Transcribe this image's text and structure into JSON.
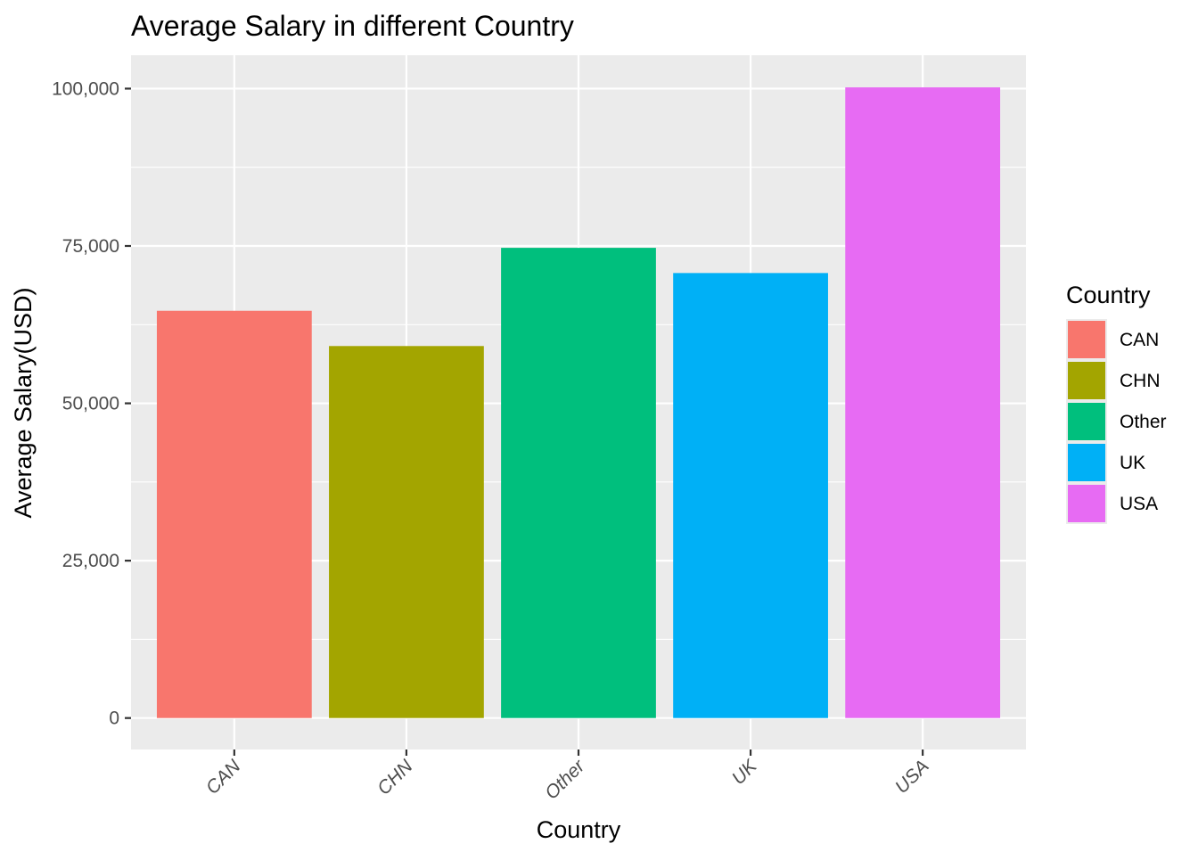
{
  "chart_data": {
    "type": "bar",
    "title": "Average Salary in different Country",
    "xlabel": "Country",
    "ylabel": "Average Salary(USD)",
    "categories": [
      "CAN",
      "CHN",
      "Other",
      "UK",
      "USA"
    ],
    "values": [
      64700,
      59100,
      74700,
      70700,
      100200
    ],
    "colors": [
      "#F8766D",
      "#A3A500",
      "#00BF7D",
      "#00B0F6",
      "#E76BF3"
    ],
    "ylim": [
      -5000,
      105300
    ],
    "yticks": [
      0,
      25000,
      50000,
      75000,
      100000
    ],
    "ytick_labels": [
      "0",
      "25,000",
      "50,000",
      "75,000",
      "100,000"
    ],
    "grid": true,
    "panel_background": "#EBEBEB",
    "legend": {
      "title": "Country",
      "position": "right",
      "entries": [
        "CAN",
        "CHN",
        "Other",
        "UK",
        "USA"
      ]
    }
  }
}
